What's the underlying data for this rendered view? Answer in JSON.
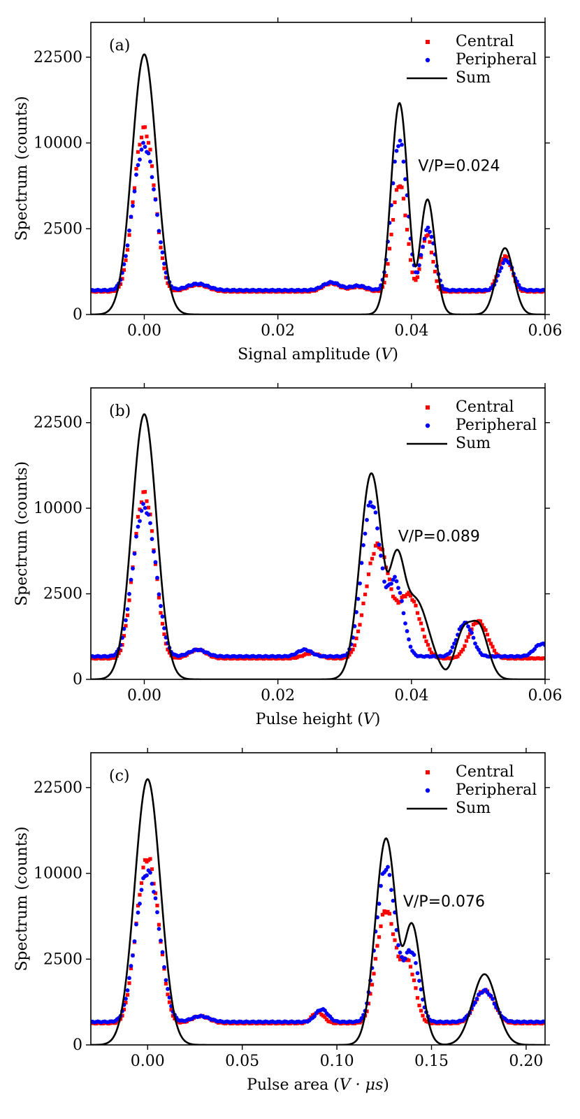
{
  "chart_data": [
    {
      "type": "scatter",
      "panel_label": "(a)",
      "xlabel_text": "Signal amplitude (",
      "xlabel_var": "V",
      "xlabel_close": ")",
      "ylabel": "Spectrum (counts)",
      "xlim": [
        -0.008,
        0.06
      ],
      "x_ticks": [
        0.0,
        0.02,
        0.04,
        0.06
      ],
      "x_tick_labels": [
        "0.00",
        "0.02",
        "0.04",
        "0.06"
      ],
      "y_ticks": [
        "0",
        "2500",
        "10000",
        "22500"
      ],
      "y_scale": "sqrt",
      "ylim": [
        0,
        29000
      ],
      "annotation": "V/P=0.024",
      "annotation_at": [
        0.041,
        7000
      ],
      "legend": [
        {
          "label": "Central",
          "marker": "square",
          "color": "#ff0000"
        },
        {
          "label": "Peripheral",
          "marker": "circle",
          "color": "#0000ff"
        },
        {
          "label": "Sum",
          "marker": "line",
          "color": "#000000"
        }
      ],
      "legend_position": "top-right",
      "series": [
        {
          "name": "Central",
          "color": "#ff0000",
          "base": 180,
          "range": [
            -0.008,
            0.06
          ],
          "peaks": [
            [
              0.0,
              11500,
              0.0012
            ],
            [
              0.0382,
              5600,
              0.00085
            ],
            [
              0.0423,
              1950,
              0.0007
            ],
            [
              0.054,
              950,
              0.0009
            ],
            [
              0.008,
              120,
              0.0015
            ],
            [
              0.028,
              150,
              0.0012
            ],
            [
              0.032,
              80,
              0.0012
            ]
          ]
        },
        {
          "name": "Peripheral",
          "color": "#0000ff",
          "base": 200,
          "range": [
            -0.008,
            0.06
          ],
          "peaks": [
            [
              0.0,
              9500,
              0.0013
            ],
            [
              0.0382,
              10000,
              0.0009
            ],
            [
              0.0425,
              2300,
              0.0008
            ],
            [
              0.0542,
              800,
              0.0009
            ],
            [
              0.008,
              120,
              0.0015
            ],
            [
              0.028,
              150,
              0.0012
            ],
            [
              0.032,
              80,
              0.0012
            ]
          ]
        },
        {
          "name": "Sum",
          "color": "#000000",
          "line": true,
          "base": 0,
          "range": [
            -0.008,
            0.06
          ],
          "peaks": [
            [
              0.0,
              23000,
              0.0013
            ],
            [
              0.0382,
              15200,
              0.0009
            ],
            [
              0.0424,
              4500,
              0.0008
            ],
            [
              0.054,
              1500,
              0.0009
            ]
          ]
        }
      ]
    },
    {
      "type": "scatter",
      "panel_label": "(b)",
      "xlabel_text": "Pulse height (",
      "xlabel_var": "V",
      "xlabel_close": ")",
      "ylabel": "Spectrum (counts)",
      "xlim": [
        -0.008,
        0.06
      ],
      "x_ticks": [
        0.0,
        0.02,
        0.04,
        0.06
      ],
      "x_tick_labels": [
        "0.00",
        "0.02",
        "0.04",
        "0.06"
      ],
      "y_ticks": [
        "0",
        "2500",
        "10000",
        "22500"
      ],
      "y_scale": "sqrt",
      "ylim": [
        0,
        29000
      ],
      "annotation": "V/P=0.089",
      "annotation_at": [
        0.038,
        6500
      ],
      "legend": [
        {
          "label": "Central",
          "marker": "square",
          "color": "#ff0000"
        },
        {
          "label": "Peripheral",
          "marker": "circle",
          "color": "#0000ff"
        },
        {
          "label": "Sum",
          "marker": "line",
          "color": "#000000"
        }
      ],
      "legend_position": "top-right",
      "series": [
        {
          "name": "Central",
          "color": "#ff0000",
          "base": 150,
          "range": [
            -0.008,
            0.06
          ],
          "peaks": [
            [
              0.0,
              11600,
              0.0012
            ],
            [
              0.035,
              6000,
              0.0014
            ],
            [
              0.0395,
              2300,
              0.0014
            ],
            [
              0.05,
              1000,
              0.0012
            ],
            [
              0.008,
              150,
              0.0012
            ],
            [
              0.025,
              80,
              0.0012
            ]
          ]
        },
        {
          "name": "Peripheral",
          "color": "#0000ff",
          "base": 180,
          "range": [
            -0.008,
            0.06
          ],
          "peaks": [
            [
              0.0,
              10000,
              0.0013
            ],
            [
              0.034,
              10500,
              0.0011
            ],
            [
              0.0375,
              3200,
              0.001
            ],
            [
              0.048,
              900,
              0.001
            ],
            [
              0.008,
              120,
              0.0012
            ],
            [
              0.024,
              120,
              0.001
            ],
            [
              0.0595,
              250,
              0.001
            ]
          ]
        },
        {
          "name": "Sum",
          "color": "#000000",
          "line": true,
          "base": 0,
          "range": [
            -0.008,
            0.06
          ],
          "peaks": [
            [
              0.0,
              24000,
              0.0013
            ],
            [
              0.034,
              14500,
              0.0012
            ],
            [
              0.0378,
              5200,
              0.001
            ],
            [
              0.0405,
              2200,
              0.0015
            ],
            [
              0.048,
              900,
              0.001
            ],
            [
              0.05,
              1000,
              0.001
            ]
          ]
        }
      ]
    },
    {
      "type": "scatter",
      "panel_label": "(c)",
      "xlabel_text": "Pulse area (",
      "xlabel_var": "V · μs",
      "xlabel_close": ")",
      "ylabel": "Spectrum (counts)",
      "xlim": [
        -0.03,
        0.21
      ],
      "x_ticks": [
        0.0,
        0.05,
        0.1,
        0.15,
        0.2
      ],
      "x_tick_labels": [
        "0.00",
        "0.05",
        "0.10",
        "0.15",
        "0.20"
      ],
      "y_ticks": [
        "0",
        "2500",
        "10000",
        "22500"
      ],
      "y_scale": "sqrt",
      "ylim": [
        0,
        29000
      ],
      "annotation": "V/P=0.076",
      "annotation_at": [
        0.135,
        6500
      ],
      "legend": [
        {
          "label": "Central",
          "marker": "square",
          "color": "#ff0000"
        },
        {
          "label": "Peripheral",
          "marker": "circle",
          "color": "#0000ff"
        },
        {
          "label": "Sum",
          "marker": "line",
          "color": "#000000"
        }
      ],
      "legend_position": "top-right",
      "series": [
        {
          "name": "Central",
          "color": "#ff0000",
          "base": 160,
          "range": [
            -0.03,
            0.21
          ],
          "peaks": [
            [
              0.0,
              11700,
              0.0045
            ],
            [
              0.126,
              6000,
              0.004
            ],
            [
              0.137,
              2200,
              0.0035
            ],
            [
              0.178,
              850,
              0.0045
            ],
            [
              0.028,
              120,
              0.0045
            ],
            [
              0.09,
              200,
              0.003
            ]
          ]
        },
        {
          "name": "Peripheral",
          "color": "#0000ff",
          "base": 180,
          "range": [
            -0.03,
            0.21
          ],
          "peaks": [
            [
              0.0,
              10000,
              0.0048
            ],
            [
              0.126,
              10500,
              0.004
            ],
            [
              0.139,
              2800,
              0.0035
            ],
            [
              0.178,
              820,
              0.0045
            ],
            [
              0.028,
              100,
              0.0045
            ],
            [
              0.092,
              250,
              0.003
            ]
          ]
        },
        {
          "name": "Sum",
          "color": "#000000",
          "line": true,
          "base": 0,
          "range": [
            -0.03,
            0.21
          ],
          "peaks": [
            [
              0.0,
              24000,
              0.0048
            ],
            [
              0.126,
              14500,
              0.004
            ],
            [
              0.1395,
              5000,
              0.0035
            ],
            [
              0.178,
              1700,
              0.0045
            ]
          ]
        }
      ]
    }
  ]
}
